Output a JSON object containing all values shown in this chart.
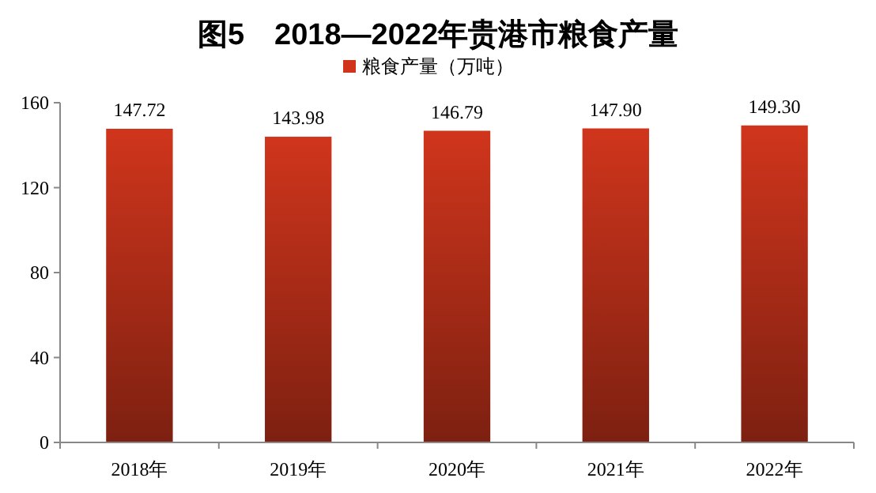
{
  "chart_data": {
    "type": "bar",
    "title": "图5　2018—2022年贵港市粮食产量",
    "categories": [
      "2018年",
      "2019年",
      "2020年",
      "2021年",
      "2022年"
    ],
    "series": [
      {
        "name": "粮食产量（万吨）",
        "color": "#d0351c",
        "values": [
          147.72,
          143.98,
          146.79,
          147.9,
          149.3
        ],
        "value_labels": [
          "147.72",
          "143.98",
          "146.79",
          "147.90",
          "149.30"
        ]
      }
    ],
    "ylim": [
      0,
      160
    ],
    "yticks": [
      0,
      40,
      80,
      120,
      160
    ],
    "legend": "top",
    "grid": false
  }
}
